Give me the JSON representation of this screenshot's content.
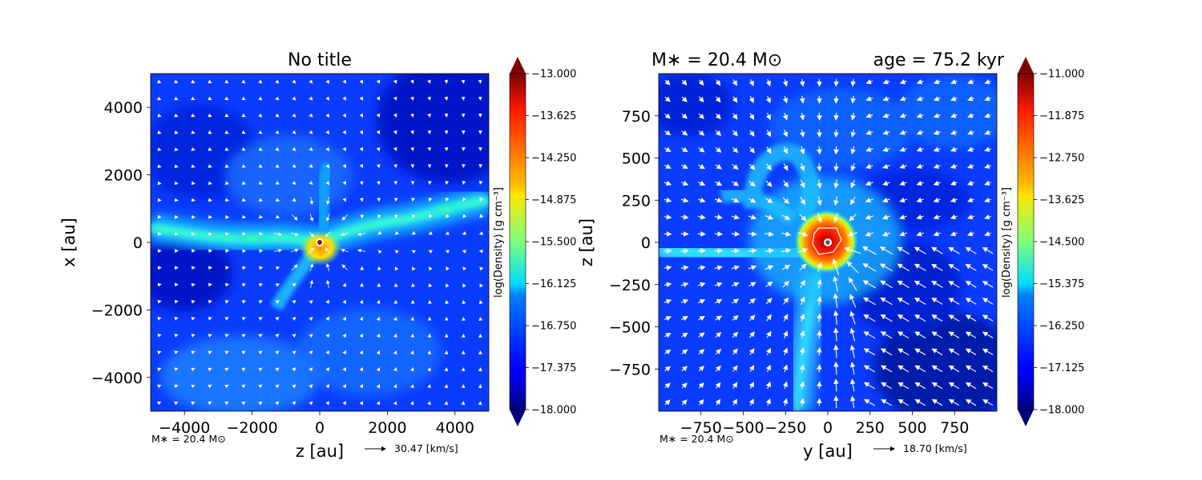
{
  "chart_data": [
    {
      "type": "heatmap",
      "title": "No title",
      "xlabel": "z [au]",
      "ylabel": "x [au]",
      "xlim": [
        -5000,
        5000
      ],
      "ylim": [
        -5000,
        5000
      ],
      "xticks": [
        "−4000",
        "−2000",
        "0",
        "2000",
        "4000"
      ],
      "xtick_values": [
        -4000,
        -2000,
        0,
        2000,
        4000
      ],
      "yticks": [
        "4000",
        "2000",
        "0",
        "−2000",
        "−4000"
      ],
      "ytick_values": [
        4000,
        2000,
        0,
        -2000,
        -4000
      ],
      "colorbar": {
        "label": "log(Density) [g cm⁻³]",
        "range": [
          -18.0,
          -13.0
        ],
        "ticks": [
          "−13.000",
          "−13.625",
          "−14.250",
          "−14.875",
          "−15.500",
          "−16.125",
          "−16.750",
          "−17.375",
          "−18.000"
        ],
        "colormap": "jet"
      },
      "mass_label": "M∗ = 20.4 M⊙",
      "velocity_key": "30.47 [km/s]"
    },
    {
      "type": "heatmap",
      "title_left": "M∗ = 20.4 M⊙",
      "title_right": "age = 75.2 kyr",
      "xlabel": "y [au]",
      "ylabel": "z [au]",
      "xlim": [
        -1000,
        1000
      ],
      "ylim": [
        -1000,
        1000
      ],
      "xticks": [
        "−750",
        "−500",
        "−250",
        "0",
        "250",
        "500",
        "750"
      ],
      "xtick_values": [
        -750,
        -500,
        -250,
        0,
        250,
        500,
        750
      ],
      "yticks": [
        "750",
        "500",
        "250",
        "0",
        "−250",
        "−500",
        "−750"
      ],
      "ytick_values": [
        750,
        500,
        250,
        0,
        -250,
        -500,
        -750
      ],
      "colorbar": {
        "label": "log(Density) [g cm⁻³]",
        "range": [
          -18.0,
          -11.0
        ],
        "ticks": [
          "−11.000",
          "−11.875",
          "−12.750",
          "−13.625",
          "−14.500",
          "−15.375",
          "−16.250",
          "−17.125",
          "−18.000"
        ],
        "colormap": "jet"
      },
      "mass_label": "M∗ = 20.4 M⊙",
      "velocity_key": "18.70 [km/s]"
    }
  ]
}
